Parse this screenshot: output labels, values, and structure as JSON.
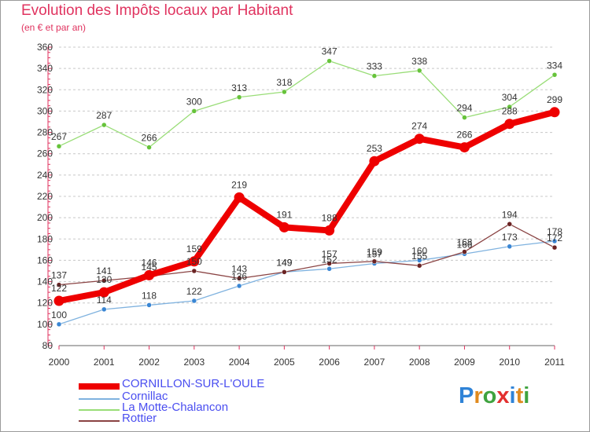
{
  "title": "Evolution des Impôts locaux par Habitant",
  "subtitle": "(en € et par an)",
  "logo": {
    "text": "Proxiti",
    "letter_colors": [
      "#2f83d7",
      "#e08a1e",
      "#3fa33f",
      "#e3302f",
      "#2f83d7",
      "#e08a1e",
      "#3fa33f"
    ]
  },
  "chart_data": {
    "type": "line",
    "title": "Evolution des Impôts locaux par Habitant",
    "subtitle": "(en € et par an)",
    "x": [
      "2000",
      "2001",
      "2002",
      "2003",
      "2004",
      "2005",
      "2006",
      "2007",
      "2008",
      "2009",
      "2010",
      "2011"
    ],
    "ylim": [
      80,
      360
    ],
    "yticks": [
      80,
      100,
      120,
      140,
      160,
      180,
      200,
      220,
      240,
      260,
      280,
      300,
      320,
      340,
      360
    ],
    "grid": "horizontal dashed",
    "legend_position": "bottom-left",
    "series": [
      {
        "name": "CORNILLON-SUR-L'OULE",
        "color": "#ee0000",
        "marker_color": "#ee0000",
        "emphasis": true,
        "values": [
          122,
          130,
          146,
          159,
          219,
          191,
          188,
          253,
          274,
          266,
          288,
          299
        ],
        "labels": [
          "122",
          "130",
          "146",
          "159",
          "219",
          "191",
          "188",
          "253",
          "274",
          "266",
          "288",
          "299"
        ]
      },
      {
        "name": "Cornillac",
        "color": "#7fb2df",
        "marker_color": "#3a86d4",
        "emphasis": false,
        "values": [
          100,
          114,
          118,
          122,
          136,
          149,
          152,
          157,
          160,
          166,
          173,
          178
        ],
        "labels": [
          "100",
          "114",
          "118",
          "122",
          "136",
          "149",
          "152",
          "157",
          "160",
          "166",
          "173",
          "178"
        ]
      },
      {
        "name": "La Motte-Chalancon",
        "color": "#99dd77",
        "marker_color": "#66c33a",
        "emphasis": false,
        "values": [
          267,
          287,
          266,
          300,
          313,
          318,
          347,
          333,
          338,
          294,
          304,
          334
        ],
        "labels": [
          "267",
          "287",
          "266",
          "300",
          "313",
          "318",
          "347",
          "333",
          "338",
          "294",
          "304",
          "334"
        ]
      },
      {
        "name": "Rottier",
        "color": "#8a4343",
        "marker_color": "#6b2424",
        "emphasis": false,
        "values": [
          137,
          141,
          145,
          150,
          143,
          149,
          157,
          159,
          155,
          168,
          194,
          172
        ],
        "labels": [
          "137",
          "141",
          "145",
          "150",
          "143",
          "149",
          "157",
          "159",
          "155",
          "168",
          "194",
          "172"
        ]
      }
    ]
  }
}
